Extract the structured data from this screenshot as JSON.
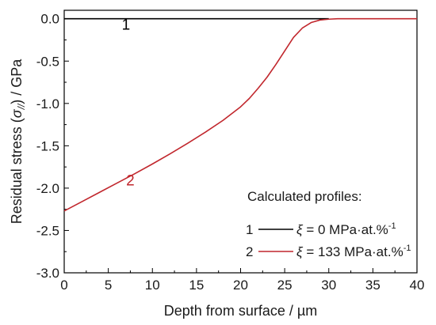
{
  "chart_data": {
    "type": "line",
    "xlabel": "Depth from surface / µm",
    "ylabel_main": "Residual stress (",
    "ylabel_symbol": "σ",
    "ylabel_sub": "//",
    "ylabel_end": ") / GPa",
    "xlim": [
      0,
      40
    ],
    "ylim": [
      -3.0,
      0.1
    ],
    "x_ticks": [
      0,
      5,
      10,
      15,
      20,
      25,
      30,
      35,
      40
    ],
    "y_ticks": [
      0.0,
      -0.5,
      -1.0,
      -1.5,
      -2.0,
      -2.5,
      -3.0
    ],
    "y_tick_labels": [
      "0.0",
      "-0.5",
      "-1.0",
      "-1.5",
      "-2.0",
      "-2.5",
      "-3.0"
    ],
    "x_tick_labels": [
      "0",
      "5",
      "10",
      "15",
      "20",
      "25",
      "30",
      "35",
      "40"
    ],
    "grid": false,
    "legend": {
      "title": "Calculated profiles:",
      "entries": [
        {
          "num": "1",
          "xi": "ξ",
          "text": " = 0 MPa·at.%",
          "sup": "-1"
        },
        {
          "num": "2",
          "xi": "ξ",
          "text": " = 133 MPa·at.%",
          "sup": "-1"
        }
      ]
    },
    "series": [
      {
        "label": "1",
        "color": "#000000",
        "x": [
          0,
          30
        ],
        "y": [
          0.0,
          0.0
        ]
      },
      {
        "label": "2",
        "color": "#c1272d",
        "x": [
          0,
          2,
          4,
          6,
          8,
          10,
          12,
          14,
          16,
          18,
          20,
          21,
          22,
          23,
          24,
          25,
          26,
          27,
          28,
          29,
          30,
          31,
          32,
          33,
          35,
          40
        ],
        "y": [
          -2.27,
          -2.16,
          -2.05,
          -1.94,
          -1.83,
          -1.715,
          -1.595,
          -1.47,
          -1.34,
          -1.2,
          -1.04,
          -0.94,
          -0.82,
          -0.69,
          -0.54,
          -0.38,
          -0.22,
          -0.11,
          -0.045,
          -0.015,
          -0.005,
          0.0,
          0.0,
          0.0,
          0.0,
          0.0
        ]
      }
    ],
    "curve_labels": [
      {
        "text": "1",
        "color": "#000000",
        "x": 7.0,
        "y": -0.13
      },
      {
        "text": "2",
        "color": "#c1272d",
        "x": 7.5,
        "y": -1.97
      }
    ]
  }
}
